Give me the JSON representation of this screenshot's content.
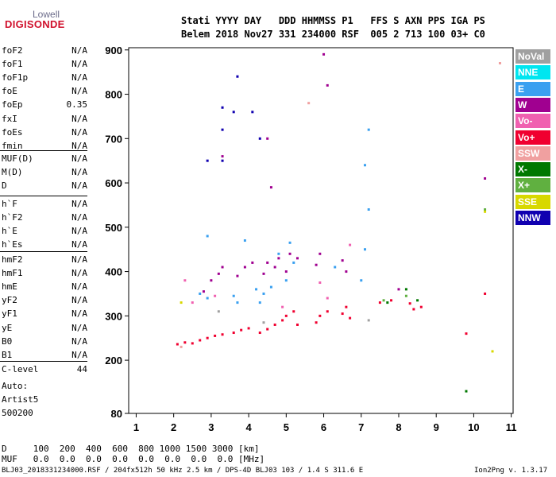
{
  "logo": {
    "line1": "Lowell",
    "line2": "DIGISONDE"
  },
  "header": {
    "line1": "Stati YYYY DAY   DDD HHMMSS P1   FFS S AXN PPS IGA PS",
    "line2": "Belem 2018 Nov27 331 234000 RSF  005 2 713 100 03+ C0"
  },
  "params": {
    "g1": [
      [
        "foF2",
        "N/A"
      ],
      [
        "foF1",
        "N/A"
      ],
      [
        "foF1p",
        "N/A"
      ],
      [
        "foE",
        "N/A"
      ],
      [
        "foEp",
        "0.35"
      ],
      [
        "fxI",
        "N/A"
      ],
      [
        "foEs",
        "N/A"
      ],
      [
        "fmin",
        "N/A"
      ]
    ],
    "g2": [
      [
        "MUF(D)",
        "N/A"
      ],
      [
        "M(D)",
        "N/A"
      ],
      [
        "D",
        "N/A"
      ]
    ],
    "g3": [
      [
        "h`F",
        "N/A"
      ],
      [
        "h`F2",
        "N/A"
      ],
      [
        "h`E",
        "N/A"
      ],
      [
        "h`Es",
        "N/A"
      ]
    ],
    "g4": [
      [
        "hmF2",
        "N/A"
      ],
      [
        "hmF1",
        "N/A"
      ],
      [
        "hmE",
        "N/A"
      ],
      [
        "yF2",
        "N/A"
      ],
      [
        "yF1",
        "N/A"
      ],
      [
        "yE",
        "N/A"
      ],
      [
        "B0",
        "N/A"
      ],
      [
        "B1",
        "N/A"
      ]
    ],
    "g5": [
      [
        "C-level",
        "44"
      ]
    ]
  },
  "auto": {
    "l1": "Auto:",
    "l2": "Artist5",
    "l3": "500200"
  },
  "footer": {
    "d_row": "D     100  200  400  600  800 1000 1500 3000 [km]",
    "muf_row": "MUF   0.0  0.0  0.0  0.0  0.0  0.0  0.0  0.0 [MHz]",
    "file_line": "BLJ03_2018331234000.RSF / 204fx512h 50 kHz 2.5 km / DPS-4D BLJ03 103 / 1.4 S 311.6 E",
    "version": "Ion2Png v. 1.3.17"
  },
  "legend": [
    {
      "label": "NoVal",
      "color": "#a0a0a0"
    },
    {
      "label": "NNE",
      "color": "#00e6f0"
    },
    {
      "label": "E",
      "color": "#3aa0f0"
    },
    {
      "label": "W",
      "color": "#a00090"
    },
    {
      "label": "Vo-",
      "color": "#f060b0"
    },
    {
      "label": "Vo+",
      "color": "#f00030"
    },
    {
      "label": "SSW",
      "color": "#f0a0a0"
    },
    {
      "label": "X-",
      "color": "#007800"
    },
    {
      "label": "X+",
      "color": "#60b040"
    },
    {
      "label": "SSE",
      "color": "#d8d800"
    },
    {
      "label": "NNW",
      "color": "#1000b0"
    }
  ],
  "chart_data": {
    "type": "scatter",
    "title": "",
    "xlabel": "",
    "ylabel": "",
    "xlim": [
      0.8,
      11.05
    ],
    "ylim": [
      80,
      905
    ],
    "x_ticks": [
      "1",
      "2",
      "3",
      "4",
      "5",
      "6",
      "7",
      "8",
      "9",
      "10",
      "11"
    ],
    "y_ticks": [
      "80",
      "200",
      "300",
      "400",
      "500",
      "600",
      "700",
      "800",
      "900"
    ],
    "series": [
      {
        "color": "#f00030",
        "points": [
          [
            2.1,
            236
          ],
          [
            2.3,
            240
          ],
          [
            2.5,
            238
          ],
          [
            2.7,
            245
          ],
          [
            2.9,
            250
          ],
          [
            3.1,
            255
          ],
          [
            3.3,
            258
          ],
          [
            3.6,
            262
          ],
          [
            3.8,
            268
          ],
          [
            4.0,
            272
          ],
          [
            4.3,
            262
          ],
          [
            4.5,
            270
          ],
          [
            4.7,
            280
          ],
          [
            4.9,
            290
          ],
          [
            5.0,
            300
          ],
          [
            5.2,
            310
          ],
          [
            5.3,
            280
          ],
          [
            5.8,
            285
          ],
          [
            5.9,
            300
          ],
          [
            6.1,
            310
          ],
          [
            6.5,
            305
          ],
          [
            6.6,
            320
          ],
          [
            6.7,
            295
          ],
          [
            7.5,
            330
          ],
          [
            7.8,
            335
          ],
          [
            8.3,
            328
          ],
          [
            8.4,
            315
          ],
          [
            8.6,
            320
          ],
          [
            9.8,
            260
          ],
          [
            10.3,
            350
          ]
        ]
      },
      {
        "color": "#a00090",
        "points": [
          [
            2.8,
            355
          ],
          [
            3.0,
            380
          ],
          [
            3.2,
            395
          ],
          [
            3.3,
            410
          ],
          [
            3.7,
            390
          ],
          [
            3.9,
            410
          ],
          [
            4.1,
            420
          ],
          [
            4.4,
            395
          ],
          [
            4.5,
            420
          ],
          [
            4.7,
            410
          ],
          [
            4.8,
            430
          ],
          [
            5.0,
            400
          ],
          [
            5.1,
            440
          ],
          [
            5.3,
            430
          ],
          [
            5.8,
            415
          ],
          [
            5.9,
            440
          ],
          [
            6.5,
            425
          ],
          [
            6.6,
            400
          ],
          [
            6.0,
            890
          ],
          [
            6.1,
            820
          ],
          [
            4.5,
            700
          ],
          [
            4.6,
            590
          ],
          [
            3.3,
            660
          ],
          [
            8.0,
            360
          ],
          [
            10.3,
            610
          ]
        ]
      },
      {
        "color": "#3aa0f0",
        "points": [
          [
            4.2,
            360
          ],
          [
            4.3,
            330
          ],
          [
            4.4,
            350
          ],
          [
            4.6,
            365
          ],
          [
            4.8,
            440
          ],
          [
            5.0,
            380
          ],
          [
            5.1,
            465
          ],
          [
            5.2,
            420
          ],
          [
            3.9,
            470
          ],
          [
            3.6,
            345
          ],
          [
            3.7,
            330
          ],
          [
            2.9,
            340
          ],
          [
            2.7,
            350
          ],
          [
            2.9,
            480
          ],
          [
            7.0,
            380
          ],
          [
            7.1,
            450
          ],
          [
            7.2,
            540
          ],
          [
            7.1,
            640
          ],
          [
            7.2,
            720
          ],
          [
            6.3,
            410
          ]
        ]
      },
      {
        "color": "#1000b0",
        "points": [
          [
            3.3,
            770
          ],
          [
            3.3,
            720
          ],
          [
            3.3,
            650
          ],
          [
            3.6,
            760
          ],
          [
            4.1,
            760
          ],
          [
            4.3,
            700
          ],
          [
            2.9,
            650
          ],
          [
            3.7,
            840
          ]
        ]
      },
      {
        "color": "#f060b0",
        "points": [
          [
            2.5,
            330
          ],
          [
            3.1,
            345
          ],
          [
            2.3,
            380
          ],
          [
            4.9,
            320
          ],
          [
            5.9,
            375
          ],
          [
            6.7,
            460
          ],
          [
            6.1,
            340
          ]
        ]
      },
      {
        "color": "#007800",
        "points": [
          [
            7.7,
            330
          ],
          [
            8.2,
            360
          ],
          [
            8.5,
            335
          ],
          [
            9.8,
            130
          ]
        ]
      },
      {
        "color": "#60b040",
        "points": [
          [
            7.6,
            335
          ],
          [
            8.2,
            345
          ],
          [
            10.3,
            540
          ]
        ]
      },
      {
        "color": "#d8d800",
        "points": [
          [
            10.5,
            220
          ],
          [
            10.3,
            535
          ],
          [
            2.2,
            330
          ]
        ]
      },
      {
        "color": "#f0a0a0",
        "points": [
          [
            10.7,
            870
          ],
          [
            2.2,
            230
          ],
          [
            5.6,
            780
          ]
        ]
      },
      {
        "color": "#a0a0a0",
        "points": [
          [
            7.2,
            290
          ],
          [
            4.4,
            285
          ],
          [
            3.2,
            310
          ]
        ]
      }
    ]
  }
}
